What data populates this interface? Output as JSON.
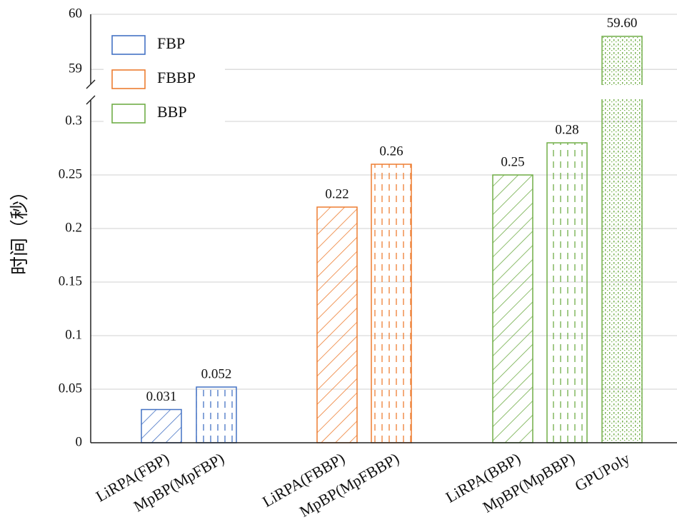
{
  "chart_data": {
    "type": "bar",
    "y_label": "时间（秒）",
    "categories": [
      "LiRPA(FBP)",
      "MpBP(MpFBP)",
      "LiRPA(FBBP)",
      "MpBP(MpFBBP)",
      "LiRPA(BBP)",
      "MpBP(MpBBP)",
      "GPUPoly"
    ],
    "series": [
      {
        "name": "FBP",
        "color": "#4472c4",
        "values": [
          0.031,
          0.052,
          null,
          null,
          null,
          null,
          null
        ],
        "value_labels": [
          "0.031",
          "0.052",
          null,
          null,
          null,
          null,
          null
        ]
      },
      {
        "name": "FBBP",
        "color": "#ed7d31",
        "values": [
          null,
          null,
          0.22,
          0.26,
          null,
          null,
          null
        ],
        "value_labels": [
          null,
          null,
          "0.22",
          "0.26",
          null,
          null,
          null
        ]
      },
      {
        "name": "BBP",
        "color": "#70ad47",
        "values": [
          null,
          null,
          null,
          null,
          0.25,
          0.28,
          59.6
        ],
        "value_labels": [
          null,
          null,
          null,
          null,
          "0.25",
          "0.28",
          "59.60"
        ]
      }
    ],
    "ylim": [
      0,
      0.32
    ],
    "yticks": [
      0,
      0.05,
      0.1,
      0.15,
      0.2,
      0.25,
      0.3
    ],
    "upper_ylim": [
      58.73,
      60
    ],
    "upper_yticks": [
      59,
      60
    ],
    "grid": true,
    "legend": "upper left"
  }
}
